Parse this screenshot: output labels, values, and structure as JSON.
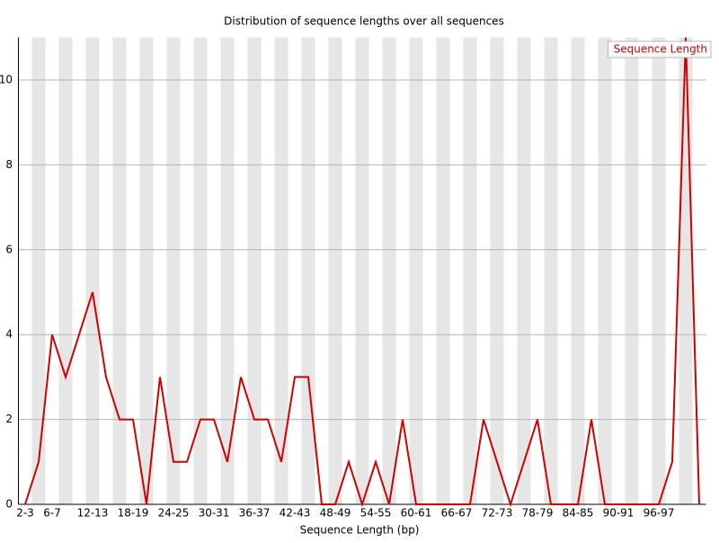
{
  "chart_data": {
    "type": "line",
    "title": "Distribution of sequence lengths over all sequences",
    "x_label": "Sequence Length (bp)",
    "categories": [
      "2-3",
      null,
      "6-7",
      null,
      null,
      "12-13",
      null,
      null,
      "18-19",
      null,
      null,
      "24-25",
      null,
      null,
      "30-31",
      null,
      null,
      "36-37",
      null,
      null,
      "42-43",
      null,
      null,
      "48-49",
      null,
      null,
      "54-55",
      null,
      null,
      "60-61",
      null,
      null,
      "66-67",
      null,
      null,
      "72-73",
      null,
      null,
      "78-79",
      null,
      null,
      "84-85",
      null,
      null,
      "90-91",
      null,
      null,
      "96-97",
      null,
      null,
      null
    ],
    "series": [
      {
        "name": "Sequence Length",
        "color": "#d00000",
        "values": [
          0,
          1,
          4,
          3,
          4,
          5,
          3,
          2,
          2,
          0,
          3,
          1,
          1,
          2,
          2,
          1,
          3,
          2,
          2,
          1,
          3,
          3,
          0,
          0,
          1,
          0,
          1,
          0,
          2,
          0,
          0,
          0,
          0,
          0,
          2,
          1,
          0,
          1,
          2,
          0,
          0,
          0,
          2,
          0,
          0,
          0,
          0,
          0,
          1,
          11,
          0
        ]
      }
    ],
    "ylim": [
      0,
      11
    ],
    "yticks": [
      0,
      2,
      4,
      6,
      8,
      10
    ],
    "grid": true,
    "legend": "top-right"
  }
}
